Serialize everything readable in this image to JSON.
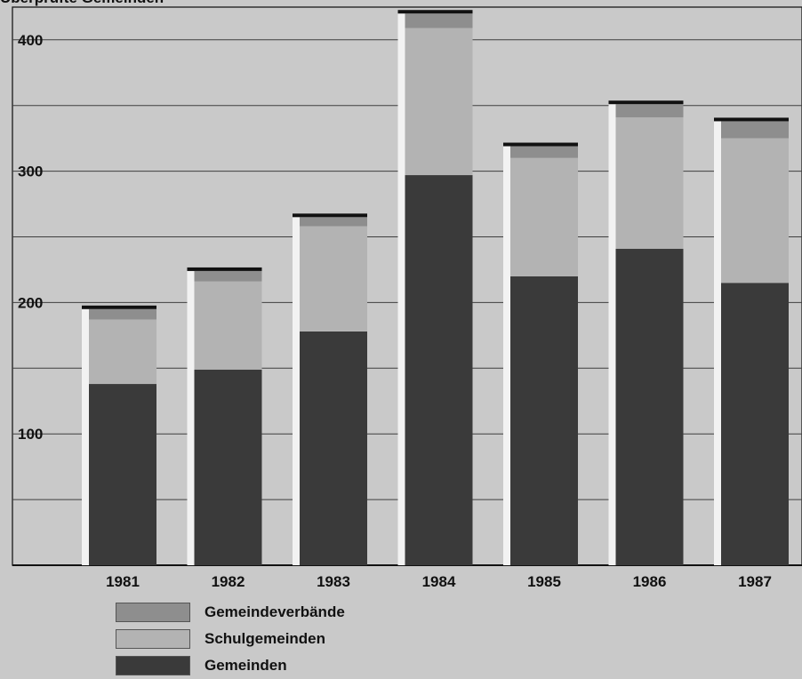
{
  "chart_data": {
    "type": "bar",
    "stacked": true,
    "title": "Überprüfte Gemeinden",
    "xlabel": "",
    "ylabel": "",
    "categories": [
      "1981",
      "1982",
      "1983",
      "1984",
      "1985",
      "1986",
      "1987"
    ],
    "series": [
      {
        "name": "Gemeinden",
        "color": "#3a3a3a",
        "values": [
          138,
          149,
          178,
          297,
          220,
          241,
          215
        ]
      },
      {
        "name": "Schulgemeinden",
        "color": "#b3b3b3",
        "values": [
          49,
          67,
          80,
          112,
          90,
          100,
          110
        ]
      },
      {
        "name": "Gemeindeverbände",
        "color": "#8e8e8e",
        "values": [
          8,
          8,
          7,
          11,
          9,
          10,
          13
        ]
      }
    ],
    "ylim": [
      0,
      425
    ],
    "yticks": [
      100,
      200,
      300,
      400
    ],
    "grid": true,
    "legend_position": "bottom-left"
  }
}
